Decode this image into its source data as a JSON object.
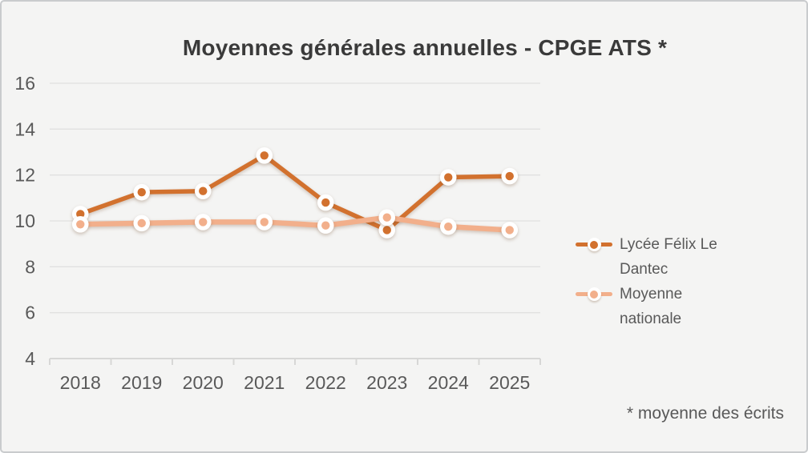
{
  "chart_data": {
    "type": "line",
    "title": "Moyennes générales annuelles - CPGE ATS *",
    "footnote": "* moyenne des écrits",
    "categories": [
      "2018",
      "2019",
      "2020",
      "2021",
      "2022",
      "2023",
      "2024",
      "2025"
    ],
    "series": [
      {
        "name": "Lycée Félix Le Dantec",
        "color": "#D2712E",
        "marker": "dot-in-white-ring",
        "values": [
          10.3,
          11.25,
          11.3,
          12.85,
          10.8,
          9.6,
          11.9,
          11.95
        ]
      },
      {
        "name": "Moyenne nationale",
        "color": "#F2AF8B",
        "marker": "dot-in-white-ring",
        "values": [
          9.85,
          9.9,
          9.95,
          9.95,
          9.8,
          10.15,
          9.75,
          9.6
        ]
      }
    ],
    "ylim": [
      4,
      16
    ],
    "yticks": [
      16,
      14,
      12,
      10,
      8,
      6,
      4
    ],
    "grid": true,
    "legend_position": "right-middle",
    "xlabel": "",
    "ylabel": "",
    "background": "#F4F4F3",
    "gridline_color": "#E1E1E0",
    "axis_color": "#D7D7D6",
    "label_color": "#595959",
    "title_color": "#3A3A3A"
  }
}
